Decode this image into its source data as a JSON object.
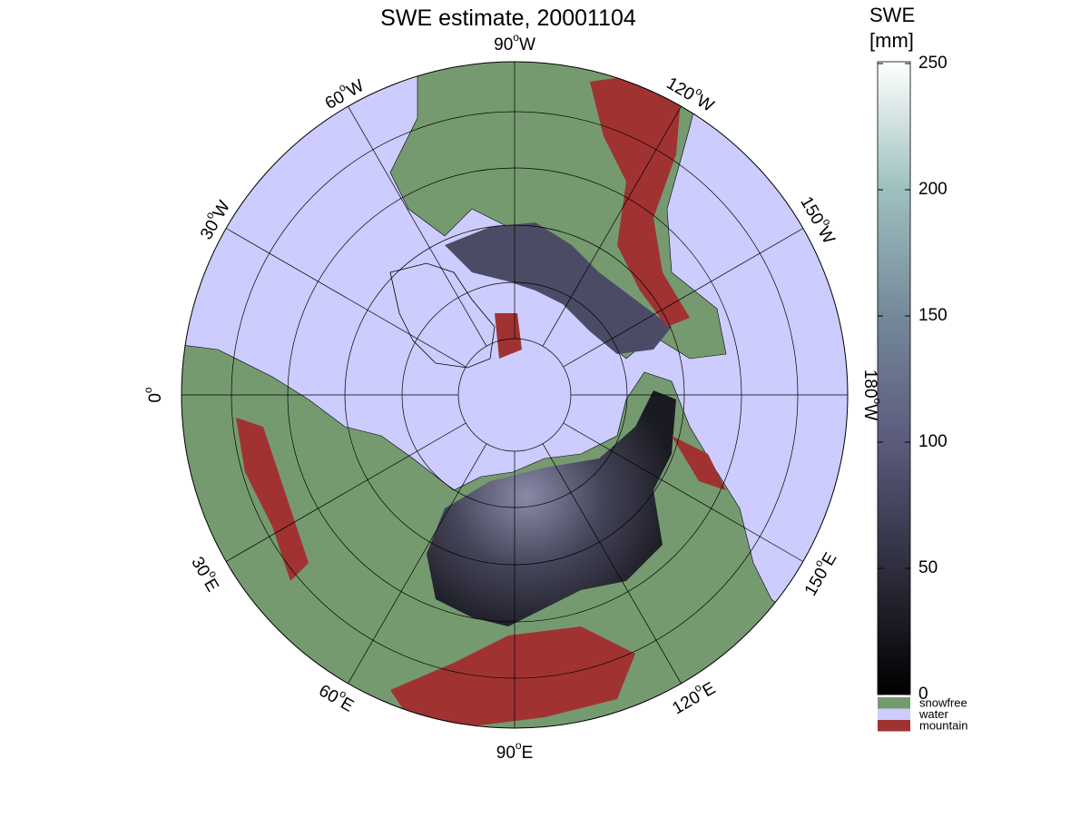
{
  "title": "SWE estimate, 20001104",
  "meridian_labels": [
    {
      "number": "90",
      "degree": "o",
      "hemisphere": "W"
    },
    {
      "number": "120",
      "degree": "o",
      "hemisphere": "W"
    },
    {
      "number": "150",
      "degree": "o",
      "hemisphere": "W"
    },
    {
      "number": "180",
      "degree": "o",
      "hemisphere": "W"
    },
    {
      "number": "150",
      "degree": "o",
      "hemisphere": "E"
    },
    {
      "number": "120",
      "degree": "o",
      "hemisphere": "E"
    },
    {
      "number": "90",
      "degree": "o",
      "hemisphere": "E"
    },
    {
      "number": "60",
      "degree": "o",
      "hemisphere": "E"
    },
    {
      "number": "30",
      "degree": "o",
      "hemisphere": "E"
    },
    {
      "number": "0",
      "degree": "o"
    },
    {
      "number": "30",
      "degree": "o",
      "hemisphere": "W"
    },
    {
      "number": "60",
      "degree": "o",
      "hemisphere": "W"
    }
  ],
  "colorbar": {
    "title": [
      "SWE",
      "[mm]"
    ],
    "lim": [
      0,
      250
    ],
    "ticks": [
      0,
      50,
      100,
      150,
      200,
      250
    ]
  },
  "legend": [
    {
      "label": "snowfree",
      "color": "#769a70"
    },
    {
      "label": "water",
      "color": "#ccccff"
    },
    {
      "label": "mountain",
      "color": "#a03232"
    }
  ]
}
